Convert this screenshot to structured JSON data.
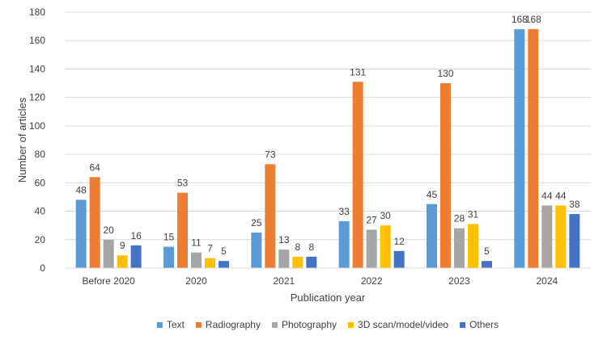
{
  "chart_data": {
    "type": "bar",
    "title": "",
    "xlabel": "Publication year",
    "ylabel": "Number of articles",
    "ylim": [
      0,
      180
    ],
    "ytick_step": 20,
    "grid": true,
    "legend_position": "bottom",
    "categories": [
      "Before 2020",
      "2020",
      "2021",
      "2022",
      "2023",
      "2024"
    ],
    "series": [
      {
        "name": "Text",
        "color": "#5B9BD5",
        "values": [
          48,
          15,
          25,
          33,
          45,
          168
        ]
      },
      {
        "name": "Radiography",
        "color": "#ED7D31",
        "values": [
          64,
          53,
          73,
          131,
          130,
          168
        ]
      },
      {
        "name": "Photography",
        "color": "#A5A5A5",
        "values": [
          20,
          11,
          13,
          27,
          28,
          44
        ]
      },
      {
        "name": "3D scan/model/video",
        "color": "#FFC000",
        "values": [
          9,
          7,
          8,
          30,
          31,
          44
        ]
      },
      {
        "name": "Others",
        "color": "#4472C4",
        "values": [
          16,
          5,
          8,
          12,
          5,
          38
        ]
      }
    ]
  }
}
